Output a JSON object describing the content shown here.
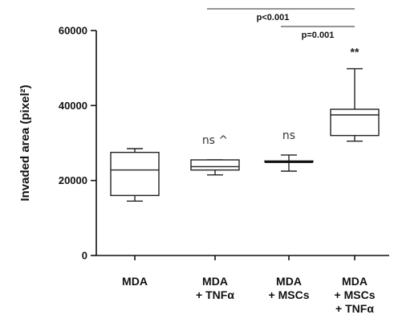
{
  "chart_data": {
    "type": "box",
    "ylabel": "Invaded area (pixel²)",
    "ylim": [
      0,
      60000
    ],
    "yticks": [
      "0",
      "20000",
      "40000",
      "60000"
    ],
    "grid": false,
    "categories": [
      [
        "MDA"
      ],
      [
        "MDA",
        "+ TNFα"
      ],
      [
        "MDA",
        "+ MSCs"
      ],
      [
        "MDA",
        "+ MSCs",
        "+ TNFα"
      ]
    ],
    "boxes": [
      {
        "min": 14500,
        "q1": 16000,
        "median": 22800,
        "q3": 27500,
        "max": 28500
      },
      {
        "min": 21500,
        "q1": 22800,
        "median": 23700,
        "q3": 25500,
        "max": 25500
      },
      {
        "min": 22500,
        "q1": 25000,
        "median": 25000,
        "q3": 25200,
        "max": 26800
      },
      {
        "min": 30500,
        "q1": 32000,
        "median": 37500,
        "q3": 39000,
        "max": 49800
      }
    ],
    "annotations": [
      "",
      "ns ^",
      "ns",
      "**"
    ],
    "comparisons": [
      {
        "label": "p<0.001",
        "from": 1,
        "to": 3
      },
      {
        "label": "p=0.001",
        "from": 2,
        "to": 3
      }
    ]
  }
}
